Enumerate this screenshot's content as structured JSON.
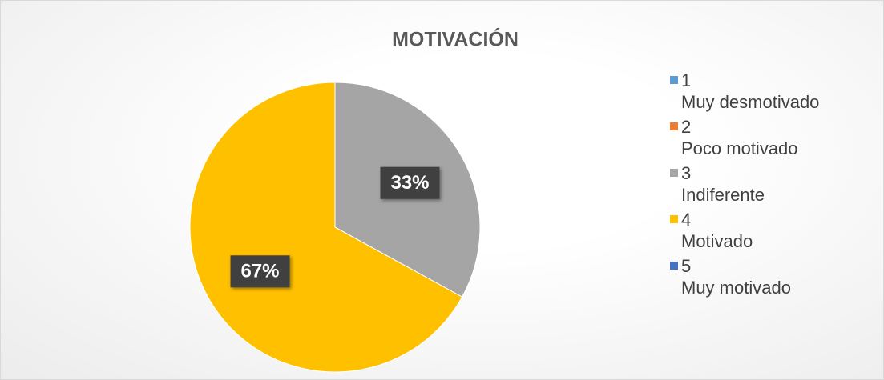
{
  "chart_data": {
    "type": "pie",
    "title": "MOTIVACIÓN",
    "categories": [
      "1\nMuy desmotivado",
      "2\nPoco motivado",
      "3\nIndiferente",
      "4\nMotivado",
      "5\nMuy motivado"
    ],
    "values": [
      0,
      0,
      33,
      67,
      0
    ],
    "value_labels": [
      null,
      null,
      "33%",
      "67%",
      null
    ],
    "colors": [
      "#5b9bd5",
      "#ed7d31",
      "#a5a5a5",
      "#ffc000",
      "#4472c4"
    ],
    "legend": "right"
  }
}
